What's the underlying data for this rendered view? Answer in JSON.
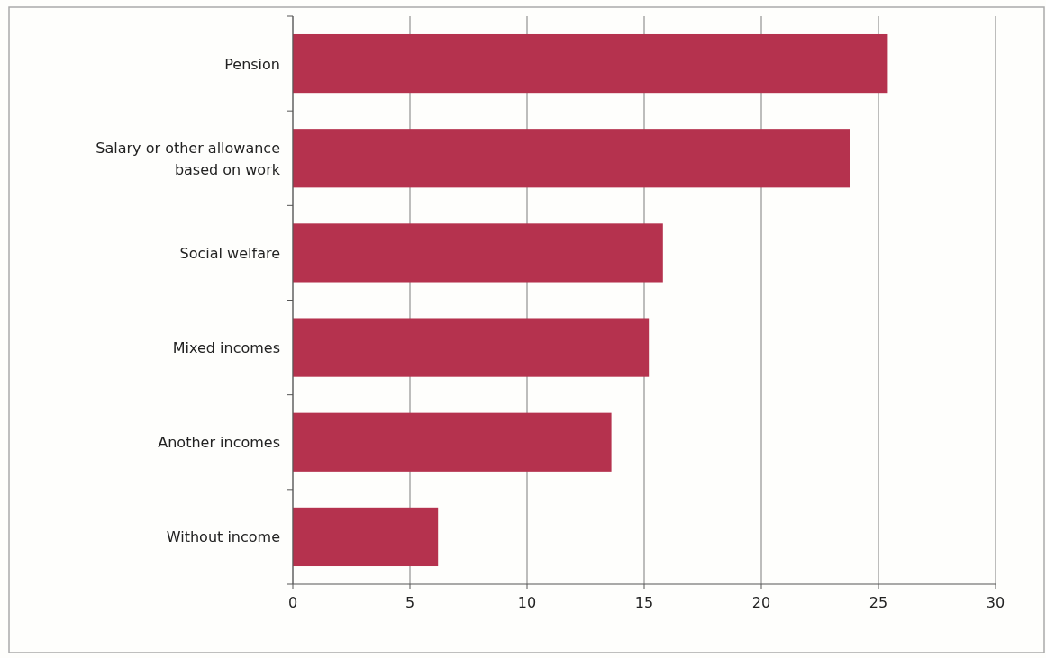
{
  "chart_data": {
    "type": "bar",
    "orientation": "horizontal",
    "categories": [
      "Pension",
      "Salary or other allowance based on work",
      "Social welfare",
      "Mixed incomes",
      "Another incomes",
      "Without income"
    ],
    "values": [
      25.4,
      23.8,
      15.8,
      15.2,
      13.6,
      6.2
    ],
    "color": "#b5324e",
    "xlim": [
      0,
      30
    ],
    "xticks": [
      0,
      5,
      10,
      15,
      20,
      25,
      30
    ],
    "grid": "x"
  }
}
